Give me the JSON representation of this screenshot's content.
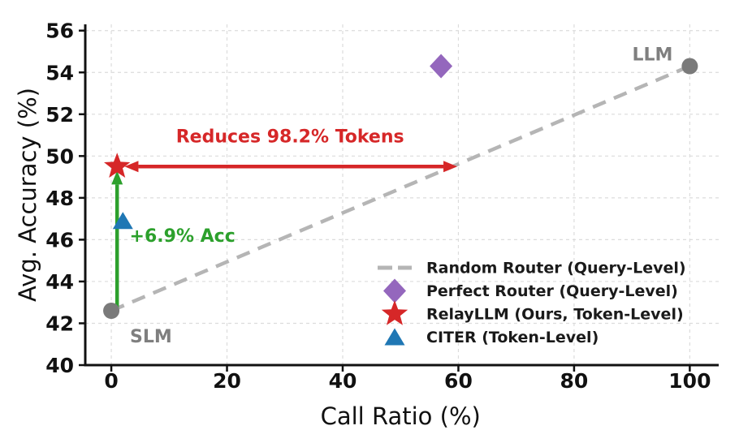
{
  "chart_data": {
    "type": "scatter",
    "title": "",
    "xlabel": "Call Ratio (%)",
    "ylabel": "Avg. Accuracy (%)",
    "xlim": [
      -4.5,
      105
    ],
    "ylim": [
      40,
      56.3
    ],
    "xticks": [
      0,
      20,
      40,
      60,
      80,
      100
    ],
    "yticks": [
      40,
      42,
      44,
      46,
      48,
      50,
      52,
      54,
      56
    ],
    "grid": true,
    "grid_style": "dashed",
    "legend_position": "lower right",
    "series": [
      {
        "name": "Random Router (Query-Level)",
        "kind": "line",
        "style": "dashed",
        "color": "#b5b5b5",
        "points": [
          [
            0,
            42.6
          ],
          [
            100,
            54.3
          ]
        ]
      },
      {
        "name": "Perfect Router (Query-Level)",
        "kind": "point",
        "marker": "diamond",
        "color": "#9467bd",
        "x": 57,
        "y": 54.3
      },
      {
        "name": "RelayLLM (Ours, Token-Level)",
        "kind": "point",
        "marker": "star",
        "color": "#d62728",
        "x": 1,
        "y": 49.5
      },
      {
        "name": "CITER (Token-Level)",
        "kind": "point",
        "marker": "triangle",
        "color": "#1f77b4",
        "x": 2,
        "y": 46.9
      },
      {
        "name": "SLM",
        "kind": "point",
        "marker": "circle",
        "color": "#7a7a7a",
        "x": 0,
        "y": 42.6,
        "label": "SLM"
      },
      {
        "name": "LLM",
        "kind": "point",
        "marker": "circle",
        "color": "#7a7a7a",
        "x": 100,
        "y": 54.3,
        "label": "LLM"
      }
    ],
    "annotations": [
      {
        "id": "tokens",
        "text": "Reduces 98.2% Tokens",
        "color": "#d62728",
        "text_pos": [
          30.9,
          50.65
        ],
        "arrow": {
          "from": [
            2.3,
            49.5
          ],
          "to": [
            59.8,
            49.5
          ],
          "heads": "both"
        }
      },
      {
        "id": "acc",
        "text": "+6.9% Acc",
        "color": "#2ca02c",
        "text_pos": [
          12.3,
          45.9
        ],
        "arrow": {
          "from": [
            1,
            42.6
          ],
          "to": [
            1,
            49.3
          ],
          "heads": "end"
        }
      }
    ],
    "legend": [
      {
        "label": "Random Router (Query-Level)",
        "marker": "dashes",
        "color": "#b5b5b5"
      },
      {
        "label": "Perfect Router (Query-Level)",
        "marker": "diamond",
        "color": "#9467bd"
      },
      {
        "label": "RelayLLM (Ours, Token-Level)",
        "marker": "star",
        "color": "#d62728"
      },
      {
        "label": "CITER (Token-Level)",
        "marker": "triangle",
        "color": "#1f77b4"
      }
    ]
  }
}
